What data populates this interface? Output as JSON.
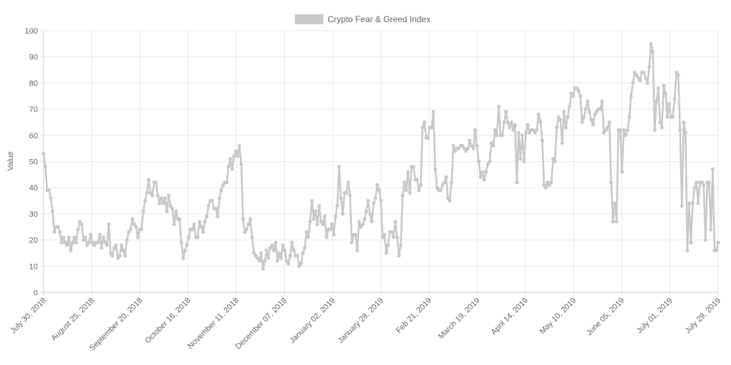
{
  "chart_data": {
    "type": "line",
    "title": "",
    "legend": {
      "position": "top",
      "label": "Crypto Fear & Greed Index",
      "color": "#c9c9c9"
    },
    "xlabel": "",
    "ylabel": "Value",
    "ylim": [
      0,
      100
    ],
    "y_ticks": [
      0,
      10,
      20,
      30,
      40,
      50,
      60,
      70,
      80,
      90,
      100
    ],
    "grid": true,
    "line_color": "#c9c9c9",
    "x_tick_labels": [
      "July 30, 2018",
      "August 25, 2018",
      "September 20, 2018",
      "October 16, 2018",
      "November 11, 2018",
      "December 07, 2018",
      "January 02, 2019",
      "January 28, 2019",
      "Feb 21, 2019",
      "March 19, 2019",
      "April 14, 2019",
      "May 10, 2019",
      "June 05, 2019",
      "July 01, 2019",
      "July 29, 2019"
    ],
    "series": [
      {
        "name": "Crypto Fear & Greed Index",
        "values": [
          53,
          48,
          39,
          39,
          36,
          31,
          23,
          25,
          25,
          23,
          19,
          21,
          19,
          18,
          21,
          16,
          19,
          21,
          19,
          24,
          27,
          26,
          20,
          21,
          18,
          19,
          22,
          19,
          18,
          19,
          19,
          22,
          17,
          21,
          19,
          18,
          26,
          15,
          14,
          17,
          18,
          13,
          14,
          18,
          16,
          14,
          20,
          23,
          24,
          28,
          26,
          25,
          21,
          24,
          24,
          31,
          35,
          38,
          43,
          38,
          37,
          42,
          42,
          37,
          34,
          36,
          34,
          36,
          31,
          37,
          33,
          32,
          26,
          31,
          28,
          28,
          19,
          13,
          16,
          18,
          21,
          24,
          24,
          26,
          21,
          21,
          27,
          25,
          23,
          27,
          29,
          33,
          35,
          35,
          32,
          32,
          29,
          36,
          39,
          41,
          42,
          42,
          48,
          51,
          47,
          52,
          54,
          52,
          56,
          49,
          28,
          23,
          24,
          26,
          28,
          21,
          15,
          14,
          13,
          12,
          15,
          9,
          12,
          16,
          13,
          17,
          18,
          16,
          19,
          12,
          15,
          13,
          18,
          16,
          12,
          11,
          14,
          19,
          16,
          14,
          14,
          10,
          11,
          15,
          17,
          23,
          21,
          27,
          35,
          28,
          31,
          26,
          33,
          27,
          26,
          29,
          21,
          24,
          24,
          26,
          22,
          29,
          33,
          48,
          36,
          30,
          38,
          38,
          42,
          37,
          19,
          22,
          22,
          16,
          27,
          25,
          26,
          28,
          31,
          35,
          30,
          27,
          34,
          36,
          41,
          39,
          35,
          21,
          22,
          15,
          18,
          23,
          23,
          21,
          27,
          21,
          14,
          18,
          37,
          42,
          39,
          46,
          38,
          48,
          48,
          43,
          43,
          39,
          41,
          63,
          65,
          59,
          59,
          63,
          63,
          69,
          47,
          40,
          39,
          39,
          41,
          42,
          44,
          36,
          35,
          42,
          56,
          54,
          55,
          55,
          56,
          56,
          55,
          54,
          55,
          58,
          56,
          55,
          62,
          56,
          50,
          44,
          46,
          43,
          46,
          49,
          50,
          57,
          56,
          62,
          60,
          71,
          60,
          60,
          65,
          69,
          65,
          63,
          65,
          62,
          64,
          42,
          61,
          51,
          60,
          50,
          61,
          64,
          61,
          62,
          62,
          61,
          62,
          68,
          65,
          58,
          41,
          40,
          42,
          41,
          42,
          51,
          50,
          63,
          67,
          66,
          57,
          69,
          63,
          67,
          71,
          76,
          75,
          78,
          78,
          77,
          75,
          65,
          67,
          70,
          73,
          69,
          66,
          64,
          68,
          69,
          70,
          70,
          73,
          61,
          62,
          63,
          65,
          42,
          27,
          34,
          27,
          62,
          62,
          46,
          62,
          60,
          62,
          67,
          75,
          80,
          84,
          83,
          82,
          81,
          84,
          84,
          82,
          80,
          86,
          95,
          92,
          62,
          73,
          78,
          65,
          63,
          79,
          76,
          67,
          72,
          67,
          67,
          74,
          84,
          83,
          62,
          33,
          65,
          61,
          16,
          34,
          19,
          34,
          40,
          42,
          34,
          42,
          42,
          41,
          20,
          42,
          42,
          24,
          47,
          16,
          16,
          19
        ]
      }
    ]
  }
}
